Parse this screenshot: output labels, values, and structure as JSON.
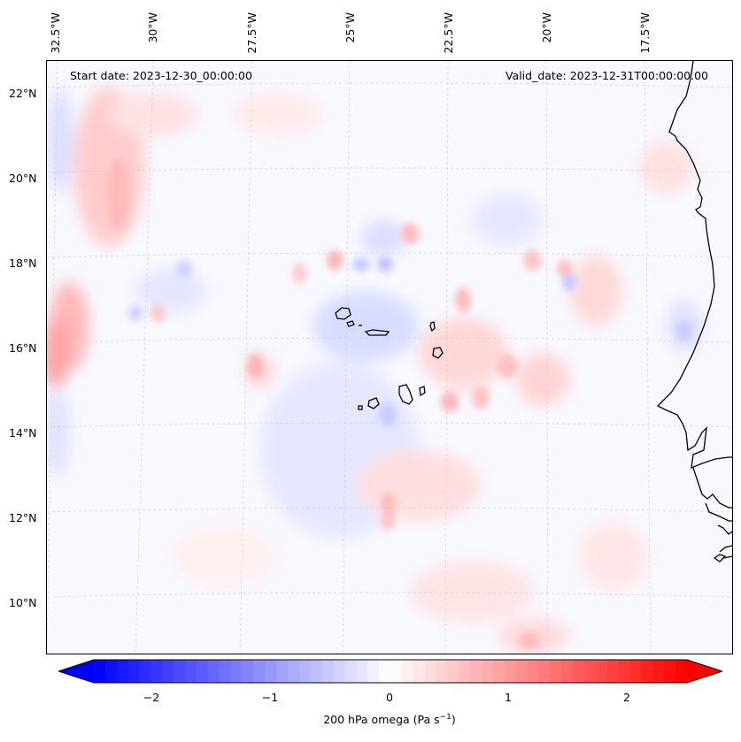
{
  "header": {
    "start_date": "Start date: 2023-12-30_00:00:00",
    "valid_date": "Valid_date: 2023-12-31T00:00:00.00"
  },
  "axes": {
    "longitude_labels": [
      "32.5°W",
      "30°W",
      "27.5°W",
      "25°W",
      "22.5°W",
      "20°W",
      "17.5°W"
    ],
    "latitude_labels": [
      "22°N",
      "20°N",
      "18°N",
      "16°N",
      "14°N",
      "12°N",
      "10°N"
    ]
  },
  "colorbar": {
    "ticks": [
      "−2",
      "−1",
      "0",
      "1",
      "2"
    ],
    "label": "200 hPa omega (Pa s",
    "label_sup": "−1",
    "label_end": ")",
    "min_color": "#0000ff",
    "mid_color": "#ffffff",
    "max_color": "#ff0000",
    "range": [
      -2.6,
      2.6
    ]
  },
  "colors": {
    "land_line": "#000000",
    "grid_line": "#c8c8c8",
    "background_field": "#f8f8ff"
  }
}
